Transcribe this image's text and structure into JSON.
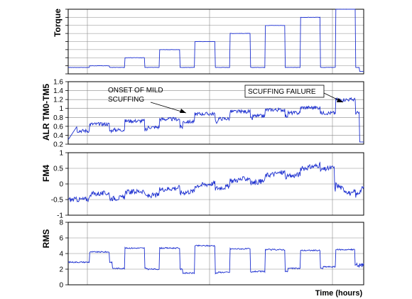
{
  "chart_data": [
    {
      "type": "line",
      "ylabel": "Torque",
      "ylim": [
        0,
        8
      ],
      "yticks_labeled": false,
      "grid": true,
      "step_levels": [
        1,
        2,
        3,
        4,
        5,
        6,
        7,
        8
      ],
      "color": "#1c2fd0"
    },
    {
      "type": "line",
      "ylabel": "ALR TM0-TM5",
      "ylim": [
        0.2,
        1.6
      ],
      "yticks": [
        "1.6",
        "1.4",
        "1.2",
        "1",
        "0.8",
        "0.6",
        "0.4",
        "0.2"
      ],
      "grid": true,
      "color": "#1c2fd0",
      "x_start": 0.13,
      "high_levels": [
        0.65,
        0.72,
        0.76,
        0.88,
        0.93,
        0.97,
        1.02,
        1.2
      ],
      "low_levels": [
        0.5,
        0.52,
        0.58,
        0.7,
        0.77,
        0.83,
        0.9
      ],
      "annotations": [
        {
          "text": "ONSET OF MILD",
          "text2": "SCUFFING"
        },
        {
          "text": "SCUFFING FAILURE",
          "text2": ""
        }
      ]
    },
    {
      "type": "line",
      "ylabel": "FM4",
      "ylim": [
        -1,
        1
      ],
      "yticks": [
        "1",
        "0.5",
        "0",
        "-0.5",
        "-1"
      ],
      "grid": true,
      "color": "#1c2fd0"
    },
    {
      "type": "line",
      "ylabel": "RMS",
      "ylim": [
        0,
        8
      ],
      "yticks": [
        "8",
        "6",
        "4",
        "2",
        "0"
      ],
      "grid": true,
      "color": "#1c2fd0",
      "high_levels": [
        4.2,
        4.7,
        4.7,
        5.0,
        4.6,
        4.5,
        4.4,
        4.5
      ],
      "low_levels": [
        2.9,
        2.1,
        2.0,
        1.5,
        1.6,
        1.7,
        2.1,
        2.3
      ]
    }
  ],
  "xlabel": "Time (hours)"
}
